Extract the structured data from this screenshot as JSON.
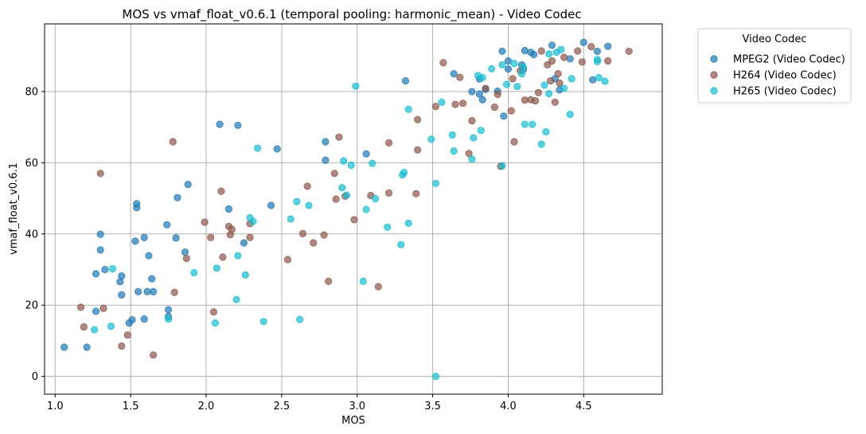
{
  "chart_data": {
    "type": "scatter",
    "title": "MOS vs vmaf_float_v0.6.1 (temporal pooling: harmonic_mean) - Video Codec",
    "xlabel": "MOS",
    "ylabel": "vmaf_float_v0.6.1",
    "xlim": [
      0.93,
      5.02
    ],
    "ylim": [
      -5,
      99
    ],
    "xticks": [
      "1.0",
      "1.5",
      "2.0",
      "2.5",
      "3.0",
      "3.5",
      "4.0",
      "4.5"
    ],
    "yticks": [
      "0",
      "20",
      "40",
      "60",
      "80"
    ],
    "grid": true,
    "legend": {
      "title": "Video Codec",
      "placement": "outside-top-right"
    },
    "series": [
      {
        "name": "MPEG2 (Video Codec)",
        "color": "#1f77b4",
        "points": [
          [
            1.06,
            8.2
          ],
          [
            1.21,
            8.2
          ],
          [
            1.27,
            18.3
          ],
          [
            1.27,
            28.8
          ],
          [
            1.3,
            35.5
          ],
          [
            1.3,
            39.9
          ],
          [
            1.33,
            30.0
          ],
          [
            1.43,
            26.6
          ],
          [
            1.44,
            22.9
          ],
          [
            1.44,
            28.2
          ],
          [
            1.49,
            15.0
          ],
          [
            1.51,
            15.9
          ],
          [
            1.53,
            38.0
          ],
          [
            1.54,
            47.4
          ],
          [
            1.54,
            48.5
          ],
          [
            1.55,
            23.8
          ],
          [
            1.59,
            16.1
          ],
          [
            1.59,
            39.0
          ],
          [
            1.61,
            23.8
          ],
          [
            1.62,
            33.9
          ],
          [
            1.64,
            27.4
          ],
          [
            1.65,
            23.8
          ],
          [
            1.74,
            42.6
          ],
          [
            1.75,
            18.7
          ],
          [
            1.75,
            16.8
          ],
          [
            1.8,
            38.9
          ],
          [
            1.81,
            50.2
          ],
          [
            1.86,
            34.9
          ],
          [
            1.88,
            53.9
          ],
          [
            2.09,
            70.8
          ],
          [
            2.15,
            47.0
          ],
          [
            2.21,
            70.5
          ],
          [
            2.25,
            37.5
          ],
          [
            2.43,
            48.0
          ],
          [
            2.47,
            63.9
          ],
          [
            2.79,
            60.7
          ],
          [
            2.79,
            65.9
          ],
          [
            3.06,
            62.5
          ],
          [
            3.32,
            83.0
          ],
          [
            3.64,
            85.0
          ],
          [
            3.76,
            80.0
          ],
          [
            3.81,
            79.3
          ],
          [
            3.81,
            83.5
          ],
          [
            3.83,
            77.7
          ],
          [
            3.85,
            80.6
          ],
          [
            3.93,
            80.1
          ],
          [
            3.96,
            91.3
          ],
          [
            3.97,
            73.1
          ],
          [
            4.0,
            86.3
          ],
          [
            4.0,
            88.6
          ],
          [
            4.09,
            87.5
          ],
          [
            4.1,
            86.2
          ],
          [
            4.11,
            91.5
          ],
          [
            4.15,
            91.0
          ],
          [
            4.17,
            90.4
          ],
          [
            4.29,
            93.0
          ],
          [
            4.31,
            83.6
          ],
          [
            4.34,
            80.5
          ],
          [
            4.41,
            89.2
          ],
          [
            4.5,
            93.8
          ],
          [
            4.56,
            83.3
          ],
          [
            4.59,
            91.3
          ],
          [
            4.66,
            92.7
          ]
        ]
      },
      {
        "name": "H264 (Video Codec)",
        "color": "#8c564b",
        "points": [
          [
            1.17,
            19.4
          ],
          [
            1.19,
            13.9
          ],
          [
            1.3,
            57.0
          ],
          [
            1.32,
            19.1
          ],
          [
            1.44,
            8.5
          ],
          [
            1.48,
            11.6
          ],
          [
            1.65,
            6.0
          ],
          [
            1.78,
            65.9
          ],
          [
            1.79,
            23.6
          ],
          [
            1.87,
            33.1
          ],
          [
            1.99,
            43.3
          ],
          [
            2.03,
            39.0
          ],
          [
            2.05,
            18.1
          ],
          [
            2.1,
            52.0
          ],
          [
            2.11,
            33.5
          ],
          [
            2.15,
            42.1
          ],
          [
            2.16,
            39.8
          ],
          [
            2.17,
            41.3
          ],
          [
            2.29,
            39.0
          ],
          [
            2.29,
            42.9
          ],
          [
            2.54,
            32.8
          ],
          [
            2.64,
            40.1
          ],
          [
            2.67,
            53.4
          ],
          [
            2.71,
            37.5
          ],
          [
            2.78,
            39.7
          ],
          [
            2.81,
            26.7
          ],
          [
            2.85,
            57.0
          ],
          [
            2.86,
            49.8
          ],
          [
            2.88,
            67.2
          ],
          [
            2.92,
            50.6
          ],
          [
            2.98,
            44.0
          ],
          [
            3.09,
            50.8
          ],
          [
            3.14,
            25.2
          ],
          [
            3.21,
            51.5
          ],
          [
            3.21,
            65.6
          ],
          [
            3.39,
            51.3
          ],
          [
            3.4,
            63.6
          ],
          [
            3.4,
            72.1
          ],
          [
            3.52,
            75.8
          ],
          [
            3.57,
            88.1
          ],
          [
            3.65,
            76.4
          ],
          [
            3.68,
            84.0
          ],
          [
            3.7,
            76.7
          ],
          [
            3.74,
            62.6
          ],
          [
            3.76,
            71.8
          ],
          [
            3.85,
            80.9
          ],
          [
            3.91,
            75.6
          ],
          [
            3.93,
            79.2
          ],
          [
            3.95,
            59.0
          ],
          [
            4.02,
            74.6
          ],
          [
            4.03,
            83.6
          ],
          [
            4.04,
            65.9
          ],
          [
            4.08,
            85.8
          ],
          [
            4.11,
            77.6
          ],
          [
            4.15,
            77.7
          ],
          [
            4.18,
            77.4
          ],
          [
            4.2,
            79.7
          ],
          [
            4.22,
            91.4
          ],
          [
            4.26,
            87.5
          ],
          [
            4.28,
            83.0
          ],
          [
            4.29,
            88.6
          ],
          [
            4.31,
            77.0
          ],
          [
            4.33,
            85.0
          ],
          [
            4.34,
            82.4
          ],
          [
            4.37,
            89.6
          ],
          [
            4.46,
            91.4
          ],
          [
            4.49,
            88.3
          ],
          [
            4.55,
            92.6
          ],
          [
            4.66,
            88.6
          ],
          [
            4.8,
            91.3
          ]
        ]
      },
      {
        "name": "H265 (Video Codec)",
        "color": "#17becf",
        "points": [
          [
            1.26,
            13.1
          ],
          [
            1.37,
            14.1
          ],
          [
            1.38,
            30.2
          ],
          [
            1.75,
            16.1
          ],
          [
            1.92,
            29.1
          ],
          [
            2.06,
            15.0
          ],
          [
            2.07,
            30.4
          ],
          [
            2.2,
            21.6
          ],
          [
            2.21,
            33.9
          ],
          [
            2.26,
            28.5
          ],
          [
            2.29,
            44.6
          ],
          [
            2.31,
            43.5
          ],
          [
            2.34,
            64.1
          ],
          [
            2.38,
            15.4
          ],
          [
            2.56,
            44.2
          ],
          [
            2.6,
            49.1
          ],
          [
            2.62,
            16.0
          ],
          [
            2.68,
            48.0
          ],
          [
            2.9,
            53.0
          ],
          [
            2.91,
            60.5
          ],
          [
            2.93,
            50.9
          ],
          [
            2.96,
            59.3
          ],
          [
            2.99,
            81.5
          ],
          [
            3.04,
            26.7
          ],
          [
            3.06,
            46.9
          ],
          [
            3.1,
            59.8
          ],
          [
            3.12,
            49.9
          ],
          [
            3.2,
            41.9
          ],
          [
            3.29,
            37.0
          ],
          [
            3.3,
            56.6
          ],
          [
            3.31,
            57.3
          ],
          [
            3.34,
            75.0
          ],
          [
            3.34,
            43.0
          ],
          [
            3.49,
            66.6
          ],
          [
            3.52,
            54.2
          ],
          [
            3.52,
            0.0
          ],
          [
            3.56,
            77.0
          ],
          [
            3.63,
            67.8
          ],
          [
            3.64,
            63.3
          ],
          [
            3.76,
            61.0
          ],
          [
            3.77,
            67.0
          ],
          [
            3.8,
            84.5
          ],
          [
            3.82,
            69.1
          ],
          [
            3.83,
            83.9
          ],
          [
            3.89,
            86.4
          ],
          [
            3.96,
            87.5
          ],
          [
            3.96,
            59.1
          ],
          [
            3.99,
            82.0
          ],
          [
            4.04,
            87.9
          ],
          [
            4.06,
            81.4
          ],
          [
            4.09,
            85.0
          ],
          [
            4.1,
            86.8
          ],
          [
            4.11,
            70.8
          ],
          [
            4.16,
            70.8
          ],
          [
            4.22,
            65.2
          ],
          [
            4.24,
            81.8
          ],
          [
            4.25,
            68.7
          ],
          [
            4.27,
            79.4
          ],
          [
            4.27,
            90.6
          ],
          [
            4.32,
            91.0
          ],
          [
            4.35,
            91.8
          ],
          [
            4.37,
            80.9
          ],
          [
            4.41,
            73.6
          ],
          [
            4.42,
            83.6
          ],
          [
            4.59,
            89.0
          ],
          [
            4.59,
            88.4
          ],
          [
            4.6,
            83.9
          ],
          [
            4.64,
            82.9
          ]
        ]
      }
    ]
  }
}
